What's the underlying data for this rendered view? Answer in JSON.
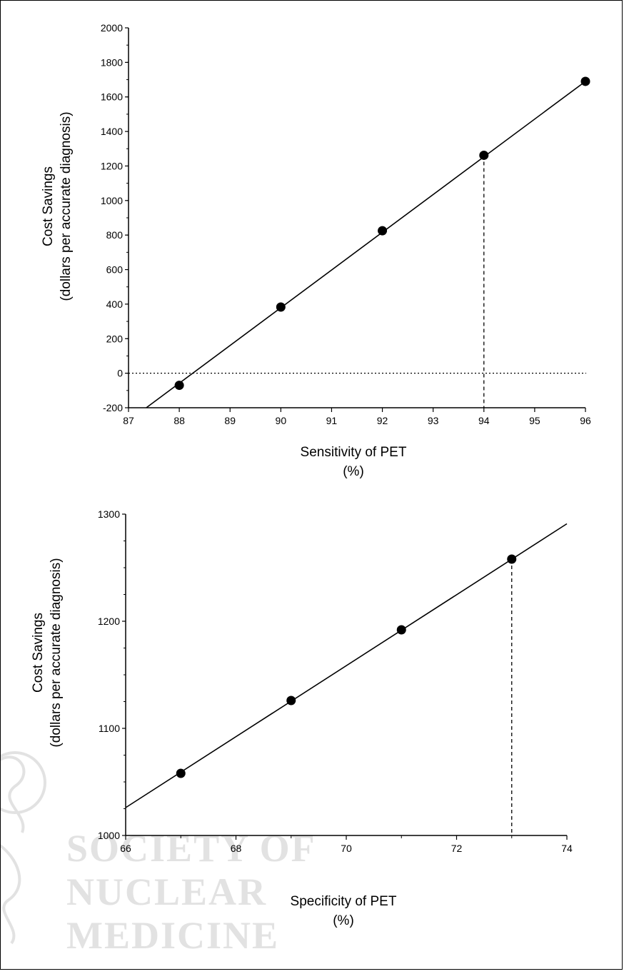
{
  "watermark": {
    "lines": [
      "SOCIETY OF",
      "NUCLEAR",
      "MEDICINE"
    ],
    "color": "#e2e2e2"
  },
  "chart_data": [
    {
      "type": "scatter",
      "title": "",
      "xlabel": "Sensitivity of PET",
      "xlabel_unit": "(%)",
      "ylabel": "Cost Savings",
      "ylabel_sub": "(dollars per accurate diagnosis)",
      "xlim": [
        87,
        96
      ],
      "ylim": [
        -200,
        2000
      ],
      "xticks": [
        "87",
        "88",
        "89",
        "90",
        "91",
        "92",
        "93",
        "94",
        "95",
        "96"
      ],
      "yticks": [
        "-200",
        "0",
        "200",
        "400",
        "600",
        "800",
        "1000",
        "1200",
        "1400",
        "1600",
        "1800",
        "2000"
      ],
      "points": [
        {
          "x": 88,
          "y": -70
        },
        {
          "x": 90,
          "y": 383
        },
        {
          "x": 92,
          "y": 825
        },
        {
          "x": 94,
          "y": 1262
        },
        {
          "x": 96,
          "y": 1690
        }
      ],
      "fit_line": [
        {
          "x": 87.35,
          "y": -200
        },
        {
          "x": 96,
          "y": 1690
        }
      ],
      "reference_hline": {
        "y": 0,
        "style": "dotted"
      },
      "reference_vline": {
        "x": 94,
        "y_top": 1262,
        "style": "dashed"
      },
      "grid": false,
      "legend": "none"
    },
    {
      "type": "scatter",
      "title": "",
      "xlabel": "Specificity of PET",
      "xlabel_unit": "(%)",
      "ylabel": "Cost Savings",
      "ylabel_sub": "(dollars per accurate diagnosis)",
      "xlim": [
        66,
        74
      ],
      "ylim": [
        1000,
        1300
      ],
      "xticks": [
        "66",
        "68",
        "70",
        "72",
        "74"
      ],
      "yticks": [
        "1000",
        "1100",
        "1200",
        "1300"
      ],
      "points": [
        {
          "x": 67,
          "y": 1058
        },
        {
          "x": 69,
          "y": 1126
        },
        {
          "x": 71,
          "y": 1192
        },
        {
          "x": 73,
          "y": 1258
        }
      ],
      "fit_line": [
        {
          "x": 66,
          "y": 1026
        },
        {
          "x": 74,
          "y": 1291
        }
      ],
      "reference_vline": {
        "x": 73,
        "y_top": 1258,
        "style": "dashed"
      },
      "grid": false,
      "legend": "none"
    }
  ]
}
